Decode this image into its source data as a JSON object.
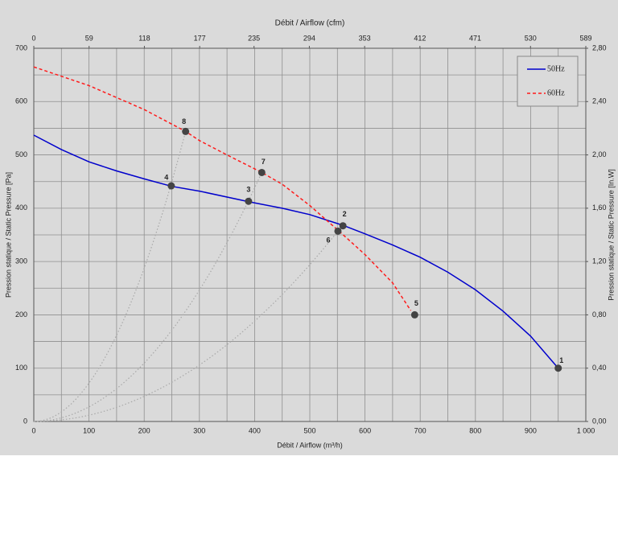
{
  "chart_data": {
    "type": "line",
    "x_label": "Débit / Airflow (m³/h)",
    "x2_label": "Débit / Airflow (cfm)",
    "y_label": "Pression statique / Static Pressure [Pa]",
    "y2_label": "Pression statique / Static Pressure [In.W]",
    "xlim": [
      0,
      1000
    ],
    "xticks": [
      0,
      100,
      200,
      300,
      400,
      500,
      600,
      700,
      800,
      900,
      {
        "value": 1000,
        "label": "1 000"
      }
    ],
    "x2lim": [
      0,
      589
    ],
    "x2ticks": [
      0,
      59,
      118,
      177,
      235,
      294,
      353,
      412,
      471,
      530,
      589
    ],
    "ylim": [
      0,
      700
    ],
    "yticks": [
      0,
      100,
      200,
      300,
      400,
      500,
      600,
      700
    ],
    "y2lim": [
      0,
      2.8
    ],
    "y2ticks": [
      {
        "value": 0,
        "label": "0,00"
      },
      {
        "value": 0.4,
        "label": "0,40"
      },
      {
        "value": 0.8,
        "label": "0,80"
      },
      {
        "value": 1.2,
        "label": "1,20"
      },
      {
        "value": 1.6,
        "label": "1,60"
      },
      {
        "value": 2.0,
        "label": "2,00"
      },
      {
        "value": 2.4,
        "label": "2,40"
      },
      {
        "value": 2.8,
        "label": "2,80"
      }
    ],
    "grid": true,
    "legend": "top-right",
    "series": [
      {
        "name": "50Hz",
        "color": "#0000cc",
        "dashed": false,
        "x": [
          0,
          50,
          100,
          150,
          200,
          250,
          300,
          390,
          450,
          500,
          560,
          600,
          650,
          700,
          750,
          800,
          850,
          900,
          950
        ],
        "values": [
          537,
          510,
          487,
          470,
          455,
          441,
          432,
          412,
          400,
          388,
          368,
          352,
          331,
          308,
          280,
          247,
          207,
          160,
          100
        ]
      },
      {
        "name": "60Hz",
        "color": "#ff1a1a",
        "dashed": true,
        "x": [
          0,
          100,
          200,
          275,
          300,
          350,
          413,
          450,
          500,
          553,
          600,
          650,
          683
        ],
        "values": [
          665,
          630,
          585,
          544,
          527,
          500,
          467,
          445,
          405,
          357,
          313,
          260,
          208
        ]
      }
    ],
    "points": [
      {
        "label": "1",
        "x": 950,
        "y": 100
      },
      {
        "label": "2",
        "x": 560,
        "y": 367
      },
      {
        "label": "3",
        "x": 389,
        "y": 413
      },
      {
        "label": "4",
        "x": 249,
        "y": 442
      },
      {
        "label": "5",
        "x": 690,
        "y": 200
      },
      {
        "label": "6",
        "x": 551,
        "y": 357,
        "system_curve": true
      },
      {
        "label": "7",
        "x": 413,
        "y": 467,
        "system_curve": true
      },
      {
        "label": "8",
        "x": 275,
        "y": 544,
        "system_curve": true
      }
    ]
  }
}
